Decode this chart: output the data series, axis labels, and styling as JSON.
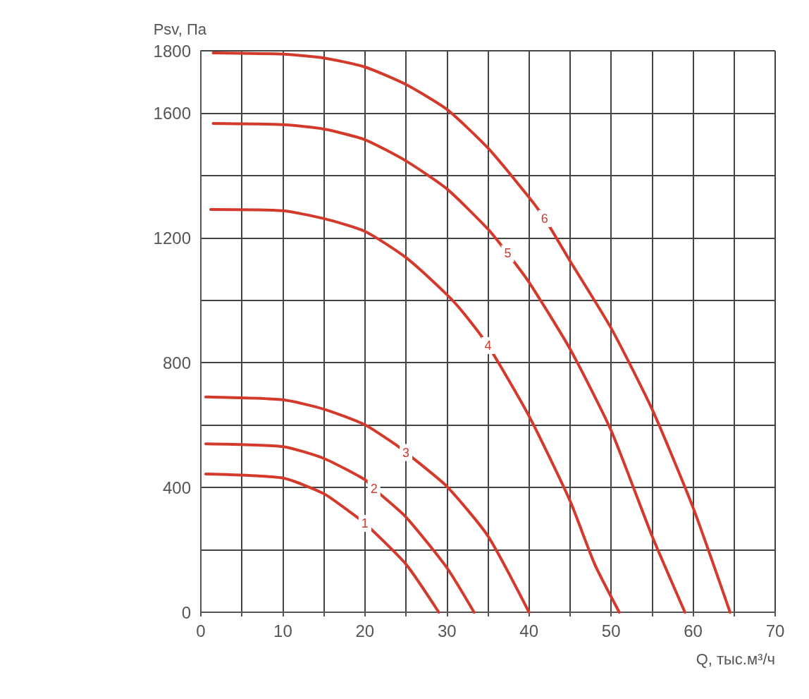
{
  "chart_data": {
    "type": "line",
    "xlabel": "Q, тыс.м³/ч",
    "ylabel": "Psv, Па",
    "xlim": [
      0,
      70
    ],
    "ylim": [
      0,
      1800
    ],
    "xticks": [
      0,
      {
        "value": 5,
        "label": null
      },
      10,
      {
        "value": 15,
        "label": null
      },
      20,
      {
        "value": 25,
        "label": null
      },
      30,
      {
        "value": 35,
        "label": null
      },
      40,
      {
        "value": 45,
        "label": null
      },
      50,
      {
        "value": 55,
        "label": null
      },
      60,
      {
        "value": 65,
        "label": null
      },
      70
    ],
    "yticks": [
      0,
      {
        "value": 200,
        "label": null
      },
      400,
      {
        "value": 600,
        "label": null
      },
      800,
      {
        "value": 1000,
        "label": null
      },
      1200,
      {
        "value": 1400,
        "label": null
      },
      1600,
      1800
    ],
    "grid": true,
    "marker": "none",
    "line_style": "solid",
    "legend": false,
    "series": [
      {
        "name": "1",
        "color": "#d33a2c",
        "x": [
          0.6,
          10,
          15,
          18,
          20,
          25,
          29
        ],
        "values": [
          443,
          430,
          380,
          325,
          285,
          154,
          0
        ]
      },
      {
        "name": "2",
        "color": "#d33a2c",
        "x": [
          0.6,
          10,
          15,
          20,
          21.1,
          25,
          30,
          33.3
        ],
        "values": [
          540,
          531,
          493,
          425,
          396,
          305,
          142,
          0
        ]
      },
      {
        "name": "3",
        "color": "#d33a2c",
        "x": [
          0.6,
          10,
          15,
          20,
          23.6,
          25,
          30,
          35,
          40
        ],
        "values": [
          690,
          681,
          651,
          601,
          540,
          512,
          403,
          244,
          0
        ]
      },
      {
        "name": "4",
        "color": "#d33a2c",
        "x": [
          1.2,
          10,
          15,
          20,
          25,
          30,
          32,
          35,
          40,
          45,
          48,
          51
        ],
        "values": [
          1291,
          1287,
          1262,
          1221,
          1137,
          1018,
          960,
          855,
          629,
          357,
          154,
          0
        ]
      },
      {
        "name": "5",
        "color": "#d33a2c",
        "x": [
          1.5,
          10,
          15,
          20,
          25,
          30,
          35,
          37.4,
          40,
          45,
          50,
          55,
          59
        ],
        "values": [
          1567,
          1563,
          1549,
          1515,
          1447,
          1357,
          1228,
          1150,
          1058,
          844,
          583,
          244,
          0
        ]
      },
      {
        "name": "6",
        "color": "#d33a2c",
        "x": [
          1.5,
          10,
          15,
          20,
          25,
          30,
          35,
          40,
          41.9,
          45,
          50,
          55,
          60,
          64.5
        ],
        "values": [
          1793,
          1789,
          1777,
          1748,
          1692,
          1612,
          1488,
          1330,
          1262,
          1126,
          911,
          651,
          335,
          0
        ]
      }
    ]
  }
}
